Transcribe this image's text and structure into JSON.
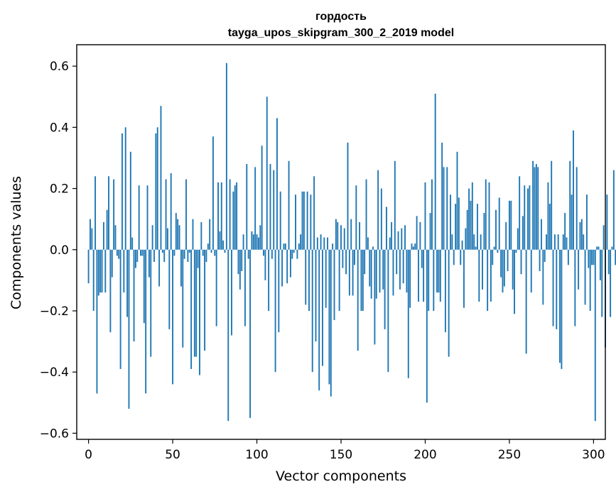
{
  "chart_data": {
    "type": "bar",
    "title": "гордость",
    "subtitle": "tayga_upos_skipgram_300_2_2019 model",
    "xlabel": "Vector components",
    "ylabel": "Components values",
    "xlim": [
      -7,
      307
    ],
    "ylim": [
      -0.62,
      0.67
    ],
    "xticks": [
      0,
      50,
      100,
      150,
      200,
      250,
      300
    ],
    "yticks": [
      -0.6,
      -0.4,
      -0.2,
      0.0,
      0.2,
      0.4,
      0.6
    ],
    "xtick_labels": [
      "0",
      "50",
      "100",
      "150",
      "200",
      "250",
      "300"
    ],
    "ytick_labels": [
      "−0.6",
      "−0.4",
      "−0.2",
      "0.0",
      "0.2",
      "0.4",
      "0.6"
    ],
    "bar_color": "#1f77b4",
    "grid": false,
    "values": [
      -0.11,
      0.1,
      0.07,
      -0.2,
      0.24,
      -0.47,
      -0.15,
      -0.14,
      -0.14,
      0.09,
      -0.14,
      0.13,
      0.24,
      -0.27,
      -0.09,
      0.23,
      0.08,
      -0.02,
      -0.03,
      -0.39,
      0.38,
      -0.14,
      0.4,
      -0.22,
      -0.52,
      0.32,
      0.04,
      -0.3,
      -0.06,
      -0.04,
      0.21,
      -0.02,
      -0.02,
      -0.24,
      -0.47,
      0.21,
      -0.09,
      -0.35,
      0.08,
      -0.04,
      0.38,
      0.4,
      -0.12,
      0.47,
      -0.01,
      -0.04,
      0.23,
      0.07,
      -0.26,
      0.25,
      -0.44,
      -0.02,
      0.12,
      0.1,
      0.08,
      -0.12,
      -0.32,
      -0.03,
      0.23,
      -0.04,
      -0.01,
      -0.39,
      0.1,
      -0.35,
      -0.35,
      -0.06,
      -0.41,
      0.09,
      -0.02,
      -0.33,
      -0.04,
      0.02,
      0.1,
      -0.01,
      0.37,
      -0.02,
      -0.25,
      0.22,
      0.06,
      0.22,
      0.03,
      -0.01,
      0.61,
      -0.56,
      0.23,
      -0.28,
      0.19,
      0.21,
      0.22,
      -0.08,
      -0.13,
      -0.07,
      0.05,
      -0.25,
      0.28,
      -0.03,
      -0.55,
      0.06,
      0.05,
      0.27,
      0.05,
      0.04,
      0.08,
      0.34,
      -0.02,
      -0.1,
      0.5,
      -0.2,
      0.28,
      -0.03,
      0.26,
      -0.4,
      0.43,
      -0.27,
      0.19,
      -0.12,
      0.02,
      0.02,
      -0.11,
      0.29,
      -0.09,
      -0.03,
      -0.01,
      0.18,
      -0.03,
      0.02,
      0.05,
      0.19,
      0.19,
      -0.18,
      0.19,
      -0.2,
      0.18,
      -0.4,
      0.24,
      -0.3,
      0.04,
      -0.46,
      0.05,
      -0.38,
      0.04,
      -0.19,
      0.04,
      -0.44,
      -0.48,
      0.02,
      -0.23,
      0.1,
      0.09,
      -0.2,
      0.08,
      -0.06,
      0.07,
      -0.08,
      0.35,
      -0.15,
      0.1,
      -0.15,
      -0.05,
      0.21,
      -0.33,
      0.09,
      -0.2,
      -0.2,
      -0.08,
      0.23,
      0.04,
      -0.12,
      -0.16,
      0.01,
      -0.31,
      -0.16,
      0.26,
      -0.14,
      0.2,
      -0.13,
      -0.26,
      0.14,
      -0.4,
      0.04,
      0.09,
      -0.15,
      0.29,
      -0.08,
      0.06,
      -0.13,
      0.07,
      -0.11,
      0.08,
      -0.14,
      -0.42,
      -0.19,
      0.02,
      0.01,
      0.02,
      0.11,
      -0.17,
      0.09,
      -0.06,
      -0.17,
      0.22,
      -0.5,
      -0.2,
      0.12,
      0.23,
      -0.2,
      0.51,
      -0.14,
      -0.14,
      -0.17,
      0.35,
      0.27,
      -0.27,
      0.27,
      -0.35,
      0.18,
      0.05,
      -0.05,
      0.15,
      0.32,
      0.17,
      -0.05,
      0.03,
      -0.19,
      0.07,
      0.13,
      0.2,
      0.16,
      0.22,
      0.05,
      0.01,
      0.15,
      -0.17,
      0.05,
      -0.13,
      0.12,
      0.23,
      -0.2,
      0.22,
      -0.17,
      -0.05,
      0.01,
      0.13,
      -0.01,
      0.17,
      -0.09,
      -0.14,
      -0.12,
      0.09,
      -0.07,
      0.16,
      0.16,
      -0.13,
      -0.21,
      -0.01,
      0.07,
      0.24,
      -0.08,
      0.11,
      0.21,
      -0.34,
      0.2,
      0.21,
      -0.14,
      0.29,
      0.27,
      0.28,
      0.27,
      -0.07,
      0.1,
      -0.18,
      -0.04,
      0.05,
      0.22,
      0.15,
      0.29,
      -0.25,
      0.05,
      -0.26,
      0.05,
      -0.37,
      -0.39,
      0.05,
      0.12,
      0.04,
      -0.05,
      0.29,
      0.18,
      0.39,
      -0.25,
      0.27,
      -0.13,
      0.09,
      0.1,
      0.05,
      -0.18,
      0.18,
      -0.06,
      -0.2,
      -0.05,
      -0.05,
      -0.56,
      0.01,
      0.01,
      -0.1,
      -0.22,
      0.08,
      -0.32,
      0.18,
      -0.08,
      -0.22,
      0.01,
      0.26,
      -0.05,
      -0.1,
      0.18,
      -0.29
    ]
  }
}
